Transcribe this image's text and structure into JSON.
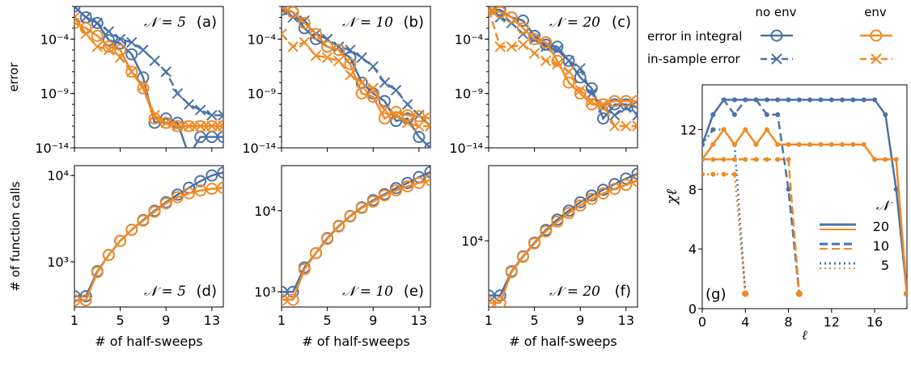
{
  "colors": {
    "no_env": "#4a72a8",
    "env": "#f08a24",
    "axis": "#000000"
  },
  "legend_top": {
    "col_no_env": "no env",
    "col_env": "env",
    "row_integral": "error in integral",
    "row_sample": "in-sample error"
  },
  "chart_data": [
    {
      "id": "a",
      "type": "line",
      "panel_label": "(a)",
      "N_label": "𝒩 = 5",
      "ylabel": "error",
      "yscale": "log",
      "ylim": [
        1e-14,
        0.1
      ],
      "xlim": [
        1,
        14
      ],
      "yticks": [
        {
          "v": 0.0001,
          "label": "10⁻⁴"
        },
        {
          "v": 1e-09,
          "label": "10⁻⁹"
        },
        {
          "v": 1e-14,
          "label": "10⁻¹⁴"
        }
      ],
      "series": [
        {
          "key": "no_env_integral",
          "marker": "circle",
          "dash": "solid",
          "x": [
            1,
            2,
            3,
            4,
            5,
            6,
            7,
            8,
            9,
            10,
            11,
            12,
            13,
            14
          ],
          "y": [
            0.1,
            0.01,
            0.003,
            8e-05,
            4e-05,
            4e-06,
            3e-08,
            2e-12,
            5e-12,
            2e-12,
            2e-15,
            1e-13,
            1e-13,
            1e-13
          ]
        },
        {
          "key": "no_env_sample",
          "marker": "x",
          "dash": "dash",
          "x": [
            1,
            2,
            3,
            4,
            5,
            6,
            7,
            8,
            9,
            10,
            11,
            12,
            13,
            14
          ],
          "y": [
            0.1,
            0.01,
            0.003,
            0.0005,
            0.0001,
            5e-05,
            1e-05,
            1e-06,
            1e-07,
            1e-09,
            1e-10,
            3e-11,
            1e-11,
            1e-11
          ]
        },
        {
          "key": "env_integral",
          "marker": "circle",
          "dash": "solid",
          "x": [
            1,
            2,
            3,
            4,
            5,
            6,
            7,
            8,
            9,
            10,
            11,
            12,
            13,
            14
          ],
          "y": [
            0.003,
            0.001,
            0.0002,
            2e-05,
            1e-05,
            1e-07,
            3e-09,
            5e-12,
            2e-12,
            1e-12,
            1e-12,
            1e-12,
            1e-12,
            1e-12
          ]
        },
        {
          "key": "env_sample",
          "marker": "x",
          "dash": "dash",
          "x": [
            1,
            2,
            3,
            4,
            5,
            6,
            7,
            8,
            9,
            10,
            11,
            12,
            13,
            14
          ],
          "y": [
            0.01,
            0.0003,
            2e-05,
            1e-05,
            2e-06,
            1e-07,
            5e-09,
            1e-11,
            2e-12,
            1e-12,
            1e-12,
            1e-12,
            1e-12,
            1e-12
          ]
        }
      ]
    },
    {
      "id": "b",
      "type": "line",
      "panel_label": "(b)",
      "N_label": "𝒩 = 10",
      "ylabel": "",
      "yscale": "log",
      "ylim": [
        1e-14,
        0.1
      ],
      "xlim": [
        1,
        14
      ],
      "yticks": [
        {
          "v": 0.0001,
          "label": "10⁻⁴"
        },
        {
          "v": 1e-09,
          "label": "10⁻⁹"
        },
        {
          "v": 1e-14,
          "label": "10⁻¹⁴"
        }
      ],
      "series": [
        {
          "key": "no_env_integral",
          "marker": "circle",
          "dash": "solid",
          "x": [
            1,
            2,
            3,
            4,
            5,
            6,
            7,
            8,
            9,
            10,
            11,
            12,
            13,
            14
          ],
          "y": [
            0.05,
            0.03,
            0.001,
            0.0001,
            2e-05,
            1e-05,
            2e-06,
            1e-08,
            1e-09,
            2e-10,
            3e-12,
            5e-12,
            1e-13,
            1e-14
          ]
        },
        {
          "key": "no_env_sample",
          "marker": "x",
          "dash": "dash",
          "x": [
            1,
            2,
            3,
            4,
            5,
            6,
            7,
            8,
            9,
            10,
            11,
            12,
            13,
            14
          ],
          "y": [
            0.05,
            0.01,
            0.005,
            0.0003,
            0.0001,
            2e-05,
            1e-05,
            2e-06,
            3e-07,
            1e-08,
            2e-09,
            1e-10,
            1e-11,
            1e-12
          ]
        },
        {
          "key": "env_integral",
          "marker": "circle",
          "dash": "solid",
          "x": [
            1,
            2,
            3,
            4,
            5,
            6,
            7,
            8,
            9,
            10,
            11,
            12,
            13,
            14
          ],
          "y": [
            0.08,
            0.03,
            0.003,
            0.0003,
            2e-05,
            1e-05,
            5e-07,
            1e-09,
            5e-10,
            5e-12,
            2e-11,
            1e-11,
            8e-12,
            5e-12
          ]
        },
        {
          "key": "env_sample",
          "marker": "x",
          "dash": "dash",
          "x": [
            1,
            2,
            3,
            4,
            5,
            6,
            7,
            8,
            9,
            10,
            11,
            12,
            13,
            14
          ],
          "y": [
            0.0003,
            2e-05,
            5e-05,
            3e-06,
            2e-06,
            1e-06,
            5e-08,
            1e-08,
            3e-09,
            3e-11,
            1e-11,
            2e-12,
            1e-12,
            1e-12
          ]
        }
      ]
    },
    {
      "id": "c",
      "type": "line",
      "panel_label": "(c)",
      "N_label": "𝒩 = 20",
      "ylabel": "",
      "yscale": "log",
      "ylim": [
        1e-14,
        0.1
      ],
      "xlim": [
        1,
        14
      ],
      "yticks": [
        {
          "v": 0.0001,
          "label": "10⁻⁴"
        },
        {
          "v": 1e-09,
          "label": "10⁻⁹"
        },
        {
          "v": 1e-14,
          "label": "10⁻¹⁴"
        }
      ],
      "series": [
        {
          "key": "no_env_integral",
          "marker": "circle",
          "dash": "solid",
          "x": [
            1,
            2,
            3,
            4,
            5,
            6,
            7,
            8,
            9,
            10,
            11,
            12,
            13,
            14
          ],
          "y": [
            0.05,
            0.05,
            0.01,
            0.005,
            0.0002,
            3e-05,
            2e-05,
            1e-06,
            3e-08,
            3e-09,
            5e-12,
            1e-10,
            1e-10,
            5e-11
          ]
        },
        {
          "key": "no_env_sample",
          "marker": "x",
          "dash": "dash",
          "x": [
            1,
            2,
            3,
            4,
            5,
            6,
            7,
            8,
            9,
            10,
            11,
            12,
            13,
            14
          ],
          "y": [
            0.05,
            0.01,
            0.003,
            0.0003,
            0.0001,
            2e-05,
            1e-05,
            1e-06,
            2e-07,
            1e-09,
            5e-11,
            1e-11,
            5e-11,
            1e-11
          ]
        },
        {
          "key": "env_integral",
          "marker": "circle",
          "dash": "solid",
          "x": [
            1,
            2,
            3,
            4,
            5,
            6,
            7,
            8,
            9,
            10,
            11,
            12,
            13,
            14
          ],
          "y": [
            0.05,
            0.03,
            0.01,
            0.001,
            0.0001,
            5e-05,
            1e-06,
            1e-08,
            1e-09,
            1e-10,
            1e-10,
            2e-10,
            2e-10,
            2e-10
          ]
        },
        {
          "key": "env_sample",
          "marker": "x",
          "dash": "dash",
          "x": [
            1,
            2,
            3,
            4,
            5,
            6,
            7,
            8,
            9,
            10,
            11,
            12,
            13,
            14
          ],
          "y": [
            0.05,
            2e-05,
            2e-05,
            3e-05,
            5e-06,
            1e-06,
            5e-07,
            1e-07,
            2e-09,
            2e-10,
            1e-10,
            1e-12,
            1e-12,
            1e-12
          ]
        }
      ]
    },
    {
      "id": "d",
      "type": "line",
      "panel_label": "(d)",
      "N_label": "𝒩 = 5",
      "xlabel": "# of half-sweeps",
      "ylabel": "# of function calls",
      "yscale": "log",
      "ylim": [
        300,
        13000
      ],
      "xlim": [
        1,
        14
      ],
      "xticks": [
        1,
        5,
        9,
        13
      ],
      "yticks": [
        {
          "v": 1000,
          "label": "10³"
        },
        {
          "v": 10000,
          "label": "10⁴"
        }
      ],
      "series": [
        {
          "key": "no_env_integral",
          "marker": "circle",
          "dash": "solid",
          "x": [
            1,
            2,
            3,
            4,
            5,
            6,
            7,
            8,
            9,
            10,
            11,
            12,
            13,
            14
          ],
          "y": [
            400,
            400,
            780,
            1200,
            1750,
            2350,
            3050,
            3900,
            4900,
            6000,
            7200,
            8600,
            10000,
            10800
          ]
        },
        {
          "key": "env_integral",
          "marker": "circle",
          "dash": "solid",
          "x": [
            1,
            2,
            3,
            4,
            5,
            6,
            7,
            8,
            9,
            10,
            11,
            12,
            13,
            14
          ],
          "y": [
            360,
            360,
            760,
            1200,
            1750,
            2350,
            3000,
            3800,
            4750,
            5600,
            6200,
            6700,
            7000,
            7200
          ]
        }
      ]
    },
    {
      "id": "e",
      "type": "line",
      "panel_label": "(e)",
      "N_label": "𝒩 = 10",
      "xlabel": "# of half-sweeps",
      "ylabel": "",
      "yscale": "log",
      "ylim": [
        650,
        36000
      ],
      "xlim": [
        1,
        14
      ],
      "xticks": [
        1,
        5,
        9,
        13
      ],
      "yticks": [
        {
          "v": 1000,
          "label": "10³"
        },
        {
          "v": 10000,
          "label": "10⁴"
        }
      ],
      "series": [
        {
          "key": "no_env_integral",
          "marker": "circle",
          "dash": "solid",
          "x": [
            1,
            2,
            3,
            4,
            5,
            6,
            7,
            8,
            9,
            10,
            11,
            12,
            13,
            14
          ],
          "y": [
            1000,
            1000,
            2000,
            3000,
            4600,
            6500,
            8600,
            11000,
            13500,
            16000,
            19000,
            22000,
            26000,
            30000
          ]
        },
        {
          "key": "env_integral",
          "marker": "circle",
          "dash": "solid",
          "x": [
            1,
            2,
            3,
            4,
            5,
            6,
            7,
            8,
            9,
            10,
            11,
            12,
            13,
            14
          ],
          "y": [
            800,
            800,
            1900,
            3000,
            4500,
            6400,
            8500,
            10800,
            13000,
            15500,
            17800,
            20000,
            22000,
            24000
          ]
        }
      ]
    },
    {
      "id": "f",
      "type": "line",
      "panel_label": "(f)",
      "N_label": "𝒩 = 20",
      "xlabel": "# of half-sweeps",
      "ylabel": "",
      "yscale": "log",
      "ylim": [
        1600,
        80000
      ],
      "xlim": [
        1,
        14
      ],
      "xticks": [
        1,
        5,
        9,
        13
      ],
      "yticks": [
        {
          "v": 10000,
          "label": "10⁴"
        }
      ],
      "series": [
        {
          "key": "no_env_integral",
          "marker": "circle",
          "dash": "solid",
          "x": [
            1,
            2,
            3,
            4,
            5,
            6,
            7,
            8,
            9,
            10,
            11,
            12,
            13,
            14
          ],
          "y": [
            2200,
            2200,
            4300,
            6500,
            9500,
            13500,
            18000,
            23000,
            29000,
            35000,
            41000,
            48000,
            56000,
            64000
          ]
        },
        {
          "key": "env_integral",
          "marker": "circle",
          "dash": "solid",
          "x": [
            1,
            2,
            3,
            4,
            5,
            6,
            7,
            8,
            9,
            10,
            11,
            12,
            13,
            14
          ],
          "y": [
            1800,
            1800,
            4200,
            6400,
            9300,
            13000,
            17000,
            21500,
            26500,
            32000,
            37000,
            42000,
            47000,
            53000
          ]
        }
      ]
    },
    {
      "id": "g",
      "type": "line",
      "panel_label": "(g)",
      "xlabel": "ℓ",
      "ylabel": "χℓ",
      "yscale": "linear",
      "xlim": [
        0,
        19
      ],
      "ylim": [
        0,
        15
      ],
      "xticks": [
        0,
        4,
        8,
        12,
        16
      ],
      "yticks": [
        0,
        4,
        8,
        12
      ],
      "legend_title": "𝒩",
      "legend": [
        {
          "label": "20",
          "dash": "solid"
        },
        {
          "label": "10",
          "dash": "dash"
        },
        {
          "label": "5",
          "dash": "dot"
        }
      ],
      "series": [
        {
          "key": "no_env",
          "N": 20,
          "dash": "solid",
          "x": [
            0,
            1,
            2,
            3,
            4,
            5,
            6,
            7,
            8,
            9,
            10,
            11,
            12,
            13,
            14,
            15,
            16,
            17,
            18,
            19
          ],
          "y": [
            11,
            13,
            14,
            14,
            14,
            14,
            14,
            14,
            14,
            14,
            14,
            14,
            14,
            14,
            14,
            14,
            14,
            13,
            8,
            1
          ]
        },
        {
          "key": "no_env",
          "N": 10,
          "dash": "dash",
          "x": [
            0,
            1,
            2,
            3,
            4,
            5,
            6,
            7,
            8,
            9
          ],
          "y": [
            11,
            13,
            14,
            13,
            14,
            14,
            13,
            13,
            8,
            1
          ]
        },
        {
          "key": "no_env",
          "N": 5,
          "dash": "dot",
          "x": [
            0,
            1,
            2,
            3,
            4
          ],
          "y": [
            11,
            12,
            12,
            11,
            1
          ]
        },
        {
          "key": "env",
          "N": 20,
          "dash": "solid",
          "x": [
            0,
            1,
            2,
            3,
            4,
            5,
            6,
            7,
            8,
            9,
            10,
            11,
            12,
            13,
            14,
            15,
            16,
            17,
            18,
            19
          ],
          "y": [
            10,
            11,
            12,
            11,
            12,
            11,
            12,
            11,
            11,
            11,
            11,
            11,
            11,
            11,
            11,
            11,
            10,
            10,
            10,
            1
          ]
        },
        {
          "key": "env",
          "N": 10,
          "dash": "dash",
          "x": [
            0,
            1,
            2,
            3,
            4,
            5,
            6,
            7,
            8,
            9
          ],
          "y": [
            10,
            10,
            10,
            10,
            10,
            10,
            10,
            10,
            10,
            1
          ]
        },
        {
          "key": "env",
          "N": 5,
          "dash": "dot",
          "x": [
            0,
            1,
            2,
            3,
            4
          ],
          "y": [
            9,
            9,
            9,
            9,
            1
          ]
        }
      ]
    }
  ]
}
